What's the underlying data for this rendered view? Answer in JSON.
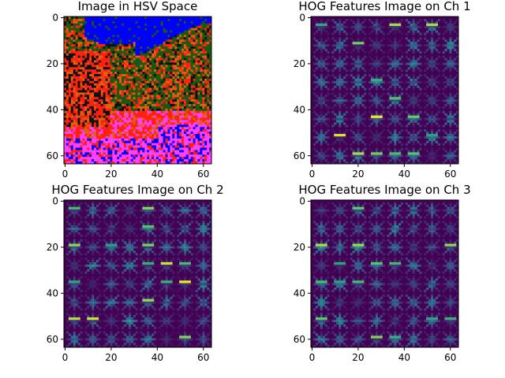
{
  "chart_data": [
    {
      "type": "heatmap",
      "title": "Image in HSV Space",
      "kind": "hsv-image",
      "xlim": [
        0,
        63
      ],
      "ylim": [
        63,
        0
      ],
      "xticks": [
        0,
        20,
        40,
        60
      ],
      "yticks": [
        0,
        20,
        40,
        60
      ],
      "colors": {
        "blue": "#0000ff",
        "red": "#ff2010",
        "green": "#1a5a10",
        "magenta": "#ff40ff",
        "orange": "#e06010",
        "dark": "#101010"
      }
    },
    {
      "type": "heatmap",
      "title": "HOG Features Image on Ch 1",
      "kind": "hog",
      "xlim": [
        0,
        63
      ],
      "ylim": [
        63,
        0
      ],
      "xticks": [
        0,
        20,
        40,
        60
      ],
      "yticks": [
        0,
        20,
        40,
        60
      ],
      "colormap": "viridis",
      "seed": 11
    },
    {
      "type": "heatmap",
      "title": "HOG Features Image on Ch 2",
      "kind": "hog",
      "xlim": [
        0,
        63
      ],
      "ylim": [
        63,
        0
      ],
      "xticks": [
        0,
        20,
        40,
        60
      ],
      "yticks": [
        0,
        20,
        40,
        60
      ],
      "colormap": "viridis",
      "seed": 23
    },
    {
      "type": "heatmap",
      "title": "HOG Features Image on Ch 3",
      "kind": "hog",
      "xlim": [
        0,
        63
      ],
      "ylim": [
        63,
        0
      ],
      "xticks": [
        0,
        20,
        40,
        60
      ],
      "yticks": [
        0,
        20,
        40,
        60
      ],
      "colormap": "viridis",
      "seed": 37
    }
  ]
}
